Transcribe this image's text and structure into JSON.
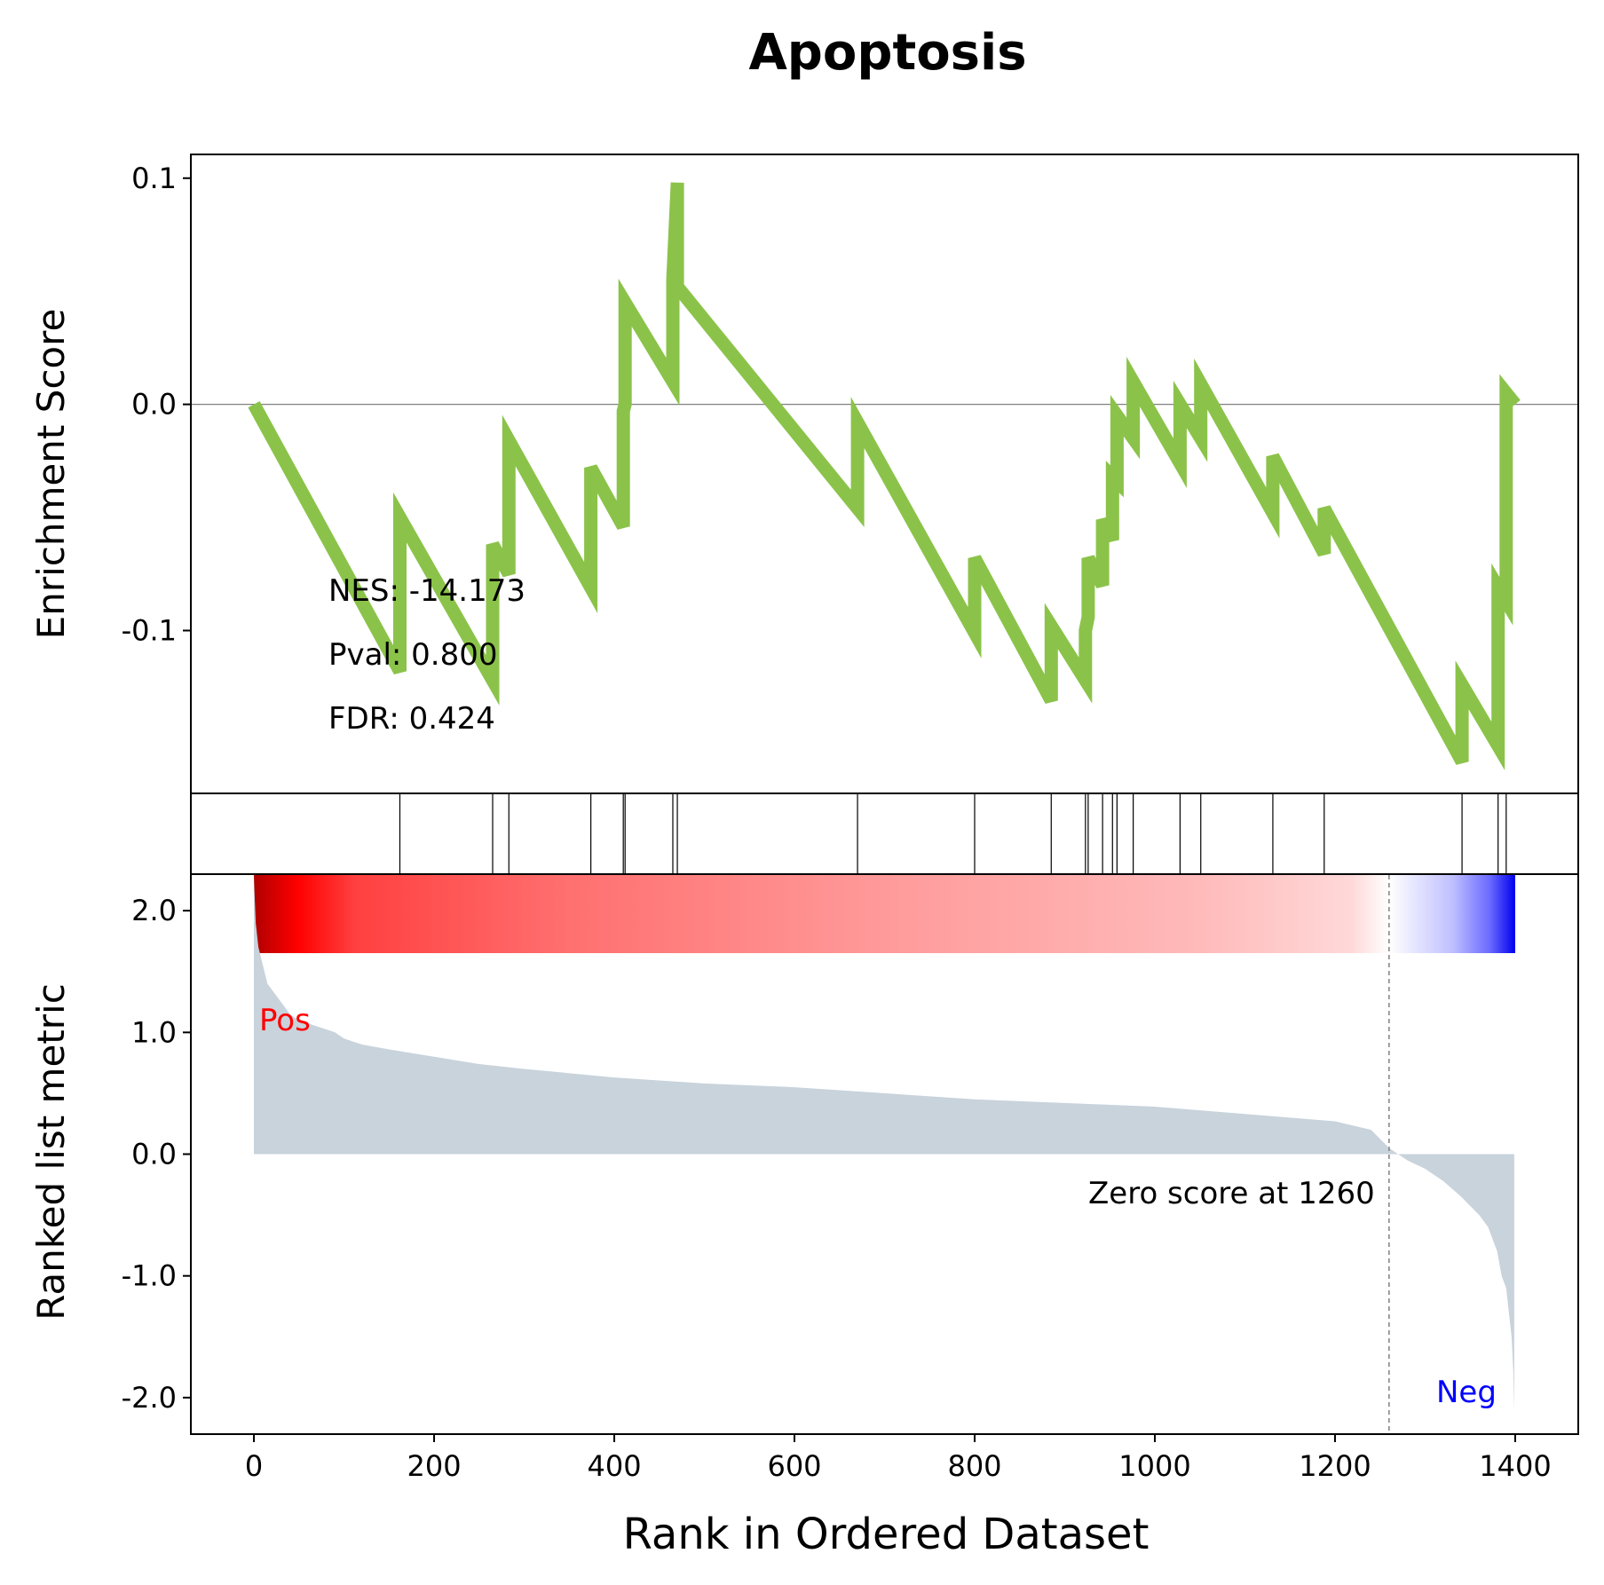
{
  "chart_data": {
    "type": "line",
    "title": "Apoptosis",
    "xlabel": "Rank in Ordered Dataset",
    "xlim": [
      -70,
      1470
    ],
    "xticks": [
      "0",
      "200",
      "400",
      "600",
      "800",
      "1000",
      "1200",
      "1400"
    ],
    "colors": {
      "es_line": "#8bc34a",
      "metric_fill": "#c8d3dc",
      "pos": "#ff0000",
      "neg": "#0000ff"
    },
    "enrichment": {
      "ylabel": "Enrichment Score",
      "ylim": [
        -0.172,
        0.1105
      ],
      "yticks": [
        "0.1",
        "0.0",
        "-0.1"
      ],
      "x": [
        0,
        162,
        162,
        265,
        265,
        283,
        283,
        374,
        374,
        410,
        410,
        412,
        412,
        465,
        465,
        470,
        470,
        670,
        670,
        800,
        800,
        885,
        885,
        923,
        923,
        926,
        926,
        942,
        942,
        953,
        953,
        958,
        958,
        976,
        976,
        1028,
        1028,
        1051,
        1051,
        1131,
        1131,
        1188,
        1188,
        1341,
        1341,
        1381,
        1381,
        1390,
        1390,
        1400
      ],
      "y": [
        0.0,
        -0.118,
        -0.05,
        -0.122,
        -0.062,
        -0.075,
        -0.016,
        -0.081,
        -0.028,
        -0.054,
        -0.003,
        0.0,
        0.045,
        0.01,
        0.055,
        0.098,
        0.052,
        -0.046,
        -0.008,
        -0.101,
        -0.068,
        -0.131,
        -0.098,
        -0.122,
        -0.1,
        -0.094,
        -0.068,
        -0.08,
        -0.051,
        -0.06,
        -0.032,
        -0.034,
        -0.005,
        -0.015,
        0.01,
        -0.026,
        0.0,
        -0.015,
        0.009,
        -0.048,
        -0.023,
        -0.066,
        -0.046,
        -0.158,
        -0.124,
        -0.151,
        -0.081,
        -0.087,
        0.005,
        0.0
      ],
      "stats": {
        "nes": "NES: -14.173",
        "pval": "Pval: 0.800",
        "fdr": "FDR: 0.424"
      }
    },
    "hits": [
      162,
      265,
      283,
      374,
      410,
      412,
      465,
      470,
      670,
      800,
      885,
      923,
      926,
      942,
      953,
      958,
      976,
      1028,
      1051,
      1131,
      1188,
      1341,
      1381,
      1390
    ],
    "metric": {
      "ylabel": "Ranked list metric",
      "ylim": [
        -2.3,
        2.3
      ],
      "yticks": [
        "2.0",
        "1.0",
        "0.0",
        "-1.0",
        "-2.0"
      ],
      "pos_label": "Pos",
      "neg_label": "Neg",
      "zero_score_label": "Zero score at 1260",
      "zero_rank": 1260,
      "x": [
        0,
        2,
        5,
        10,
        15,
        20,
        30,
        40,
        50,
        70,
        90,
        100,
        120,
        150,
        200,
        250,
        300,
        400,
        500,
        600,
        700,
        800,
        900,
        1000,
        1100,
        1200,
        1240,
        1260,
        1280,
        1300,
        1320,
        1340,
        1360,
        1370,
        1380,
        1385,
        1390,
        1393,
        1396,
        1398,
        1399
      ],
      "y": [
        2.28,
        1.9,
        1.7,
        1.55,
        1.4,
        1.35,
        1.25,
        1.15,
        1.1,
        1.05,
        1.0,
        0.95,
        0.9,
        0.86,
        0.8,
        0.74,
        0.7,
        0.63,
        0.58,
        0.55,
        0.5,
        0.45,
        0.42,
        0.39,
        0.33,
        0.27,
        0.2,
        0.05,
        -0.05,
        -0.12,
        -0.22,
        -0.35,
        -0.5,
        -0.6,
        -0.8,
        -1.0,
        -1.1,
        -1.3,
        -1.5,
        -1.8,
        -2.12
      ]
    }
  }
}
